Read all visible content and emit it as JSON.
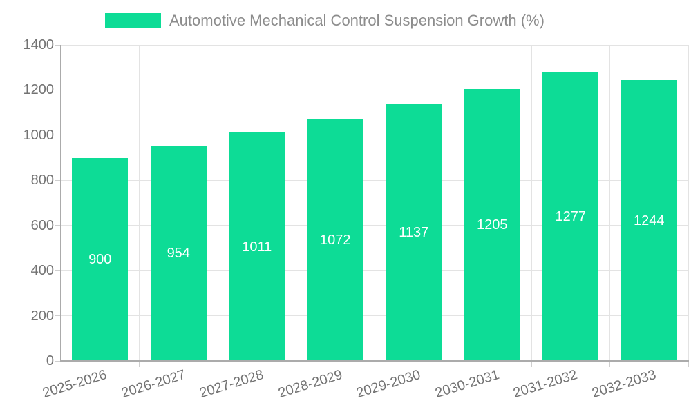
{
  "chart_data": {
    "type": "bar",
    "title": "Automotive Mechanical Control Suspension Growth (%)",
    "categories": [
      "2025-2026",
      "2026-2027",
      "2027-2028",
      "2028-2029",
      "2029-2030",
      "2030-2031",
      "2031-2032",
      "2032-2033"
    ],
    "values": [
      900,
      954,
      1011,
      1072,
      1137,
      1205,
      1277,
      1244
    ],
    "ylim": [
      0,
      1400
    ],
    "yticks": [
      0,
      200,
      400,
      600,
      800,
      1000,
      1200,
      1400
    ],
    "xlabel": "",
    "ylabel": "",
    "grid": true,
    "legend_position": "top",
    "bar_color": "#0ddc96",
    "value_label_color": "#ffffff",
    "axis_label_color": "#737373",
    "title_color": "#8c8c8c"
  }
}
